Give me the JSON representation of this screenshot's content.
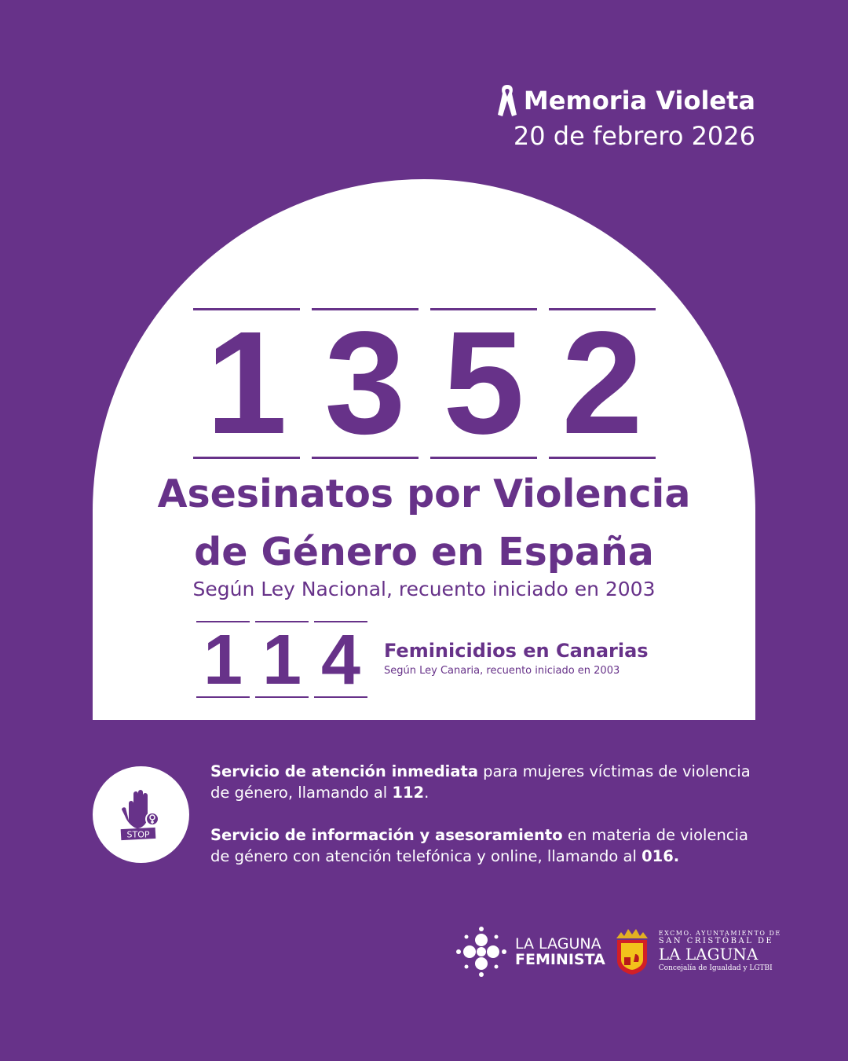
{
  "header": {
    "title": "Memoria Violeta",
    "date": "20 de febrero 2026",
    "icon": "ribbon-icon"
  },
  "national": {
    "digits": [
      "1",
      "3",
      "5",
      "2"
    ],
    "title_line1": "Asesinatos por Violencia",
    "title_line2": "de Género en España",
    "subtitle": "Según Ley Nacional, recuento iniciado en 2003"
  },
  "canarias": {
    "digits": [
      "1",
      "1",
      "4"
    ],
    "title": "Feminicidios en Canarias",
    "subtitle": "Según Ley Canaria, recuento iniciado en 2003"
  },
  "services": {
    "icon": "stop-hand-icon",
    "stop_label": "STOP",
    "s1_bold": "Servicio de atención inmediata",
    "s1_text": " para mujeres víctimas de violencia de género, llamando al ",
    "s1_number": "112",
    "s1_end": ".",
    "s2_bold": "Servicio de información y asesoramiento",
    "s2_text": " en materia de violencia de género con atención telefónica y online, llamando al ",
    "s2_number": "016."
  },
  "footer": {
    "logo1_line1": "LA LAGUNA",
    "logo1_line2": "FEMINISTA",
    "ay_line1": "EXCMO. AYUNTAMIENTO DE",
    "ay_line2": "SAN CRISTÓBAL DE",
    "ay_line3": "LA LAGUNA",
    "ay_line4": "Concejalía de Igualdad y LGTBI"
  },
  "colors": {
    "primary": "#673289",
    "white": "#ffffff"
  }
}
